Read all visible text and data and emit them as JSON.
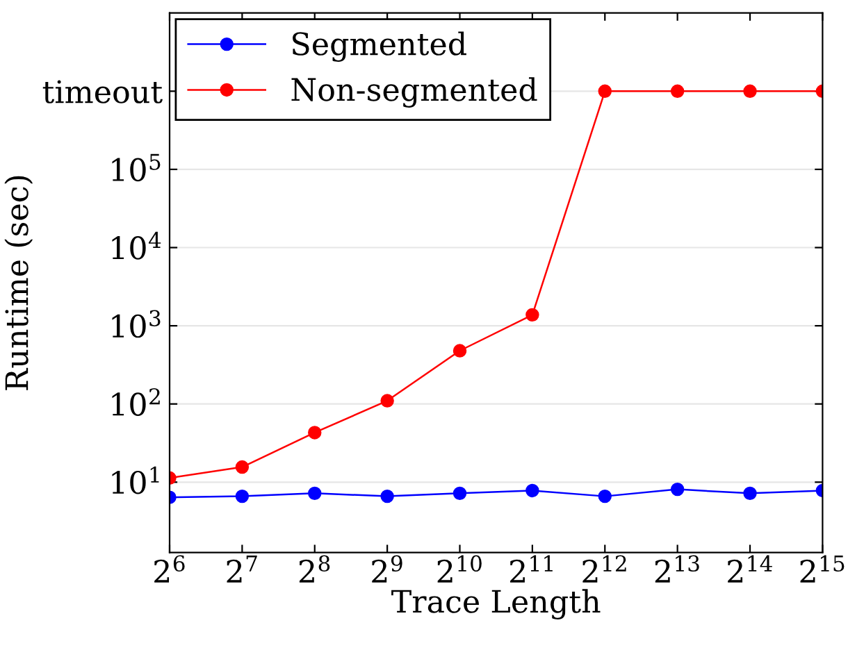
{
  "chart_data": {
    "type": "line",
    "xlabel": "Trace Length",
    "ylabel": "Runtime (sec)",
    "x": [
      64,
      128,
      256,
      512,
      1024,
      2048,
      4096,
      8192,
      16384,
      32768
    ],
    "series": [
      {
        "name": "Segmented",
        "color": "#0000ff",
        "values": [
          6.4,
          6.6,
          7.2,
          6.6,
          7.2,
          7.8,
          6.6,
          8.1,
          7.2,
          7.8
        ]
      },
      {
        "name": "Non-segmented",
        "color": "#ff0000",
        "values": [
          11.3,
          15.6,
          43,
          110,
          480,
          1380,
          1000000,
          1000000,
          1000000,
          1000000
        ]
      }
    ],
    "log": "xy",
    "xlim": [
      64,
      32768
    ],
    "ylim": [
      1.26,
      10000000
    ],
    "xticks": [
      {
        "value": 64,
        "label": "2$^{6}$"
      },
      {
        "value": 128,
        "label": "2$^{7}$"
      },
      {
        "value": 256,
        "label": "2$^{8}$"
      },
      {
        "value": 512,
        "label": "2$^{9}$"
      },
      {
        "value": 1024,
        "label": "2$^{10}$"
      },
      {
        "value": 2048,
        "label": "2$^{11}$"
      },
      {
        "value": 4096,
        "label": "2$^{12}$"
      },
      {
        "value": 8192,
        "label": "2$^{13}$"
      },
      {
        "value": 16384,
        "label": "2$^{14}$"
      },
      {
        "value": 32768,
        "label": "2$^{15}$"
      }
    ],
    "yticks": [
      {
        "value": 10,
        "label": "10$^{1}$"
      },
      {
        "value": 100,
        "label": "10$^{2}$"
      },
      {
        "value": 1000,
        "label": "10$^{3}$"
      },
      {
        "value": 10000,
        "label": "10$^{4}$"
      },
      {
        "value": 100000,
        "label": "10$^{5}$"
      },
      {
        "value": 1000000,
        "label": "timeout"
      }
    ],
    "grid": "y",
    "legend": "top left",
    "marker": "circle",
    "line_style": "solid"
  }
}
